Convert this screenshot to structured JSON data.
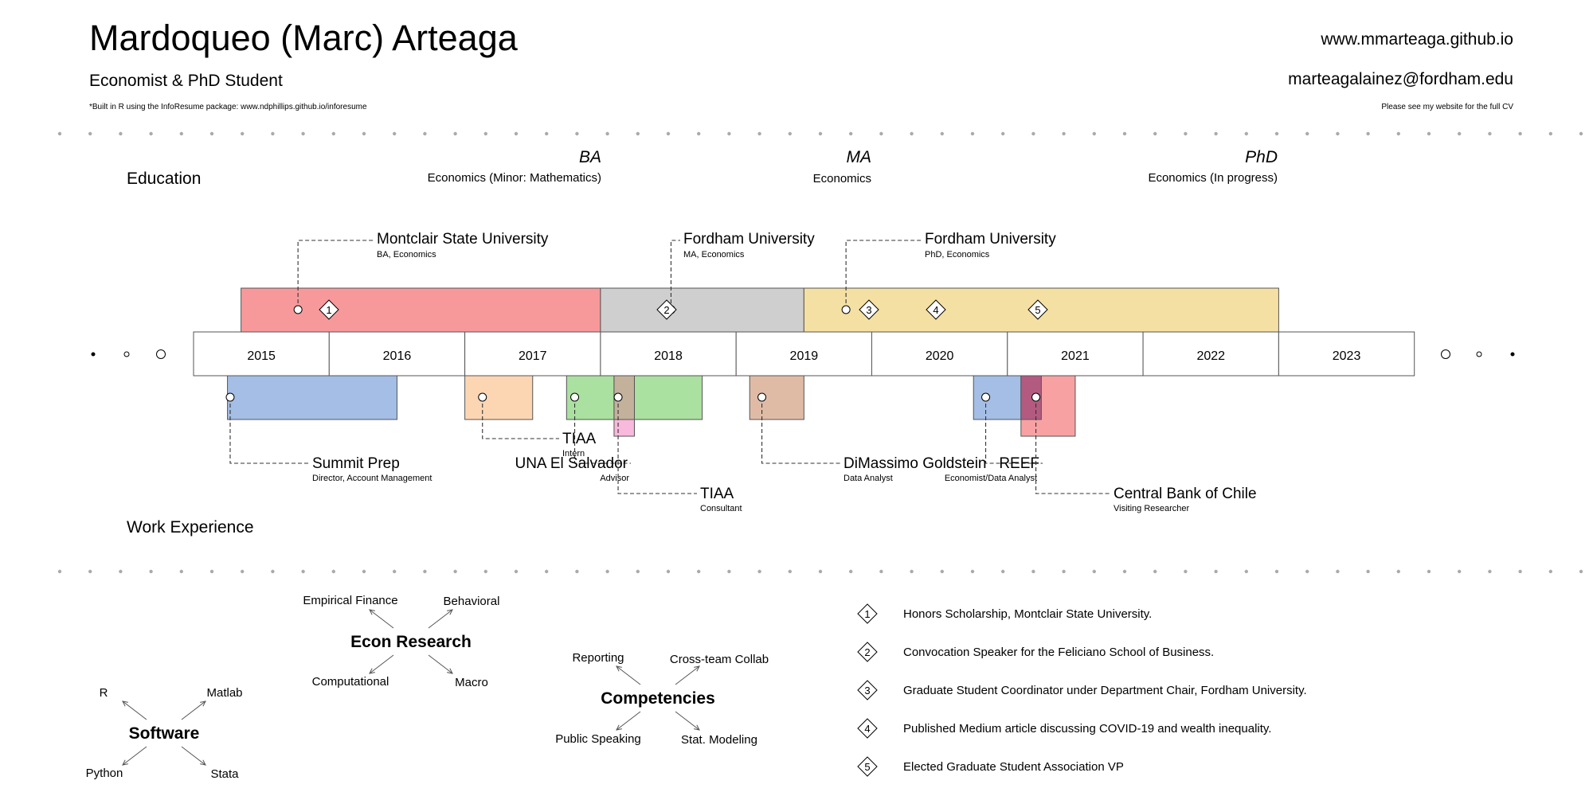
{
  "header": {
    "name": "Mardoqueo (Marc) Arteaga",
    "role": "Economist & PhD Student",
    "note": "*Built in R using the InfoResume package: www.ndphillips.github.io/inforesume",
    "website": "www.mmarteaga.github.io",
    "email": "marteagalainez@fordham.edu",
    "cv_note": "Please see my website for the full CV"
  },
  "sections": {
    "education": "Education",
    "work": "Work Experience"
  },
  "timeline": {
    "years": [
      "2015",
      "2016",
      "2017",
      "2018",
      "2019",
      "2020",
      "2021",
      "2022",
      "2023"
    ]
  },
  "degrees": [
    {
      "title": "BA",
      "field": "Economics (Minor: Mathematics)"
    },
    {
      "title": "MA",
      "field": "Economics"
    },
    {
      "title": "PhD",
      "field": "Economics (In progress)"
    }
  ],
  "education": [
    {
      "org": "Montclair State University",
      "detail": "BA, Economics",
      "start": 2014.85,
      "end": 2017.5,
      "color": "#f7999b",
      "marker": 2015.27
    },
    {
      "org": "Fordham University",
      "detail": "MA, Economics",
      "start": 2017.5,
      "end": 2019.0,
      "color": "#cfcfcf",
      "marker": 2018.02
    },
    {
      "org": "Fordham University",
      "detail": "PhD, Economics",
      "start": 2019.0,
      "end": 2022.5,
      "color": "#f5e0a3",
      "marker": 2019.31
    }
  ],
  "work": [
    {
      "org": "Summit Prep",
      "detail": "Director, Account Management",
      "start": 2014.75,
      "end": 2016.0,
      "color": "#9cb8e3",
      "marker": 2014.77
    },
    {
      "org": "TIAA",
      "detail": "Intern",
      "start": 2016.5,
      "end": 2017.0,
      "color": "#fcd2ad",
      "marker": 2016.63
    },
    {
      "org": "UNA El Salvador",
      "detail": "Advisor",
      "start": 2017.25,
      "end": 2018.25,
      "color": "#a3dd98",
      "marker": 2017.31
    },
    {
      "org": "TIAA",
      "detail": "Consultant",
      "start": 2017.6,
      "end": 2017.75,
      "color": "#f7b3d9",
      "marker": 2017.63
    },
    {
      "org": "DiMassimo Goldstein",
      "detail": "Data Analyst",
      "start": 2018.6,
      "end": 2019.0,
      "color": "#dcb59e",
      "marker": 2018.69
    },
    {
      "org": "REEF",
      "detail": "Economist/Data Analyst",
      "start": 2020.25,
      "end": 2020.75,
      "color": "#9cb8e3",
      "marker": 2020.34
    },
    {
      "org": "Central Bank of Chile",
      "detail": "Visiting Researcher",
      "start": 2020.6,
      "end": 2021.0,
      "color": "#f7999b",
      "marker": 2020.71
    }
  ],
  "honors_markers": [
    {
      "n": "1",
      "x": 2015.0
    },
    {
      "n": "2",
      "x": 2018.0
    },
    {
      "n": "3",
      "x": 2019.5
    },
    {
      "n": "4",
      "x": 2019.5
    },
    {
      "n": "5",
      "x": 2020.25
    }
  ],
  "honors": [
    {
      "n": "1",
      "text": "Honors Scholarship, Montclair State University."
    },
    {
      "n": "2",
      "text": "Convocation Speaker for the Feliciano School of Business."
    },
    {
      "n": "3",
      "text": "Graduate Student Coordinator under Department Chair, Fordham University."
    },
    {
      "n": "4",
      "text": "Published Medium article discussing COVID-19 and wealth inequality."
    },
    {
      "n": "5",
      "text": "Elected Graduate Student Association VP"
    }
  ],
  "skills": [
    {
      "center": "Software",
      "items": [
        "R",
        "Matlab",
        "Python",
        "Stata"
      ]
    },
    {
      "center": "Econ Research",
      "items": [
        "Empirical Finance",
        "Behavioral",
        "Computational",
        "Macro"
      ]
    },
    {
      "center": "Competencies",
      "items": [
        "Reporting",
        "Cross-team Collab",
        "Public Speaking",
        "Stat. Modeling"
      ]
    }
  ]
}
